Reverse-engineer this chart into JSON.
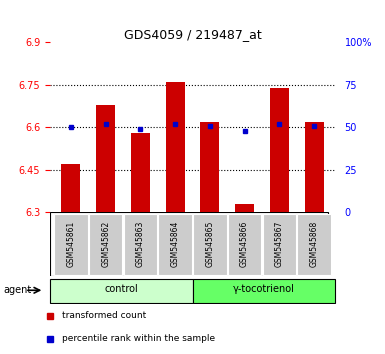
{
  "title": "GDS4059 / 219487_at",
  "samples": [
    "GSM545861",
    "GSM545862",
    "GSM545863",
    "GSM545864",
    "GSM545865",
    "GSM545866",
    "GSM545867",
    "GSM545868"
  ],
  "red_values": [
    6.47,
    6.68,
    6.58,
    6.76,
    6.62,
    6.33,
    6.74,
    6.62
  ],
  "blue_values_pct": [
    50,
    52,
    49,
    52,
    51,
    48,
    52,
    51
  ],
  "bar_bottom": 6.3,
  "ylim_left": [
    6.3,
    6.9
  ],
  "ylim_right": [
    0,
    100
  ],
  "yticks_left": [
    6.3,
    6.45,
    6.6,
    6.75,
    6.9
  ],
  "ytick_labels_left": [
    "6.3",
    "6.45",
    "6.6",
    "6.75",
    "6.9"
  ],
  "yticks_right": [
    0,
    25,
    50,
    75,
    100
  ],
  "ytick_labels_right": [
    "0",
    "25",
    "50",
    "75",
    "100%"
  ],
  "hlines": [
    6.45,
    6.6,
    6.75
  ],
  "groups": [
    {
      "label": "control",
      "indices": [
        0,
        1,
        2,
        3
      ],
      "color": "#ccffcc"
    },
    {
      "label": "γ-tocotrienol",
      "indices": [
        4,
        5,
        6,
        7
      ],
      "color": "#66ff66"
    }
  ],
  "agent_label": "agent",
  "legend_red_label": "transformed count",
  "legend_blue_label": "percentile rank within the sample",
  "red_color": "#cc0000",
  "blue_color": "#0000cc",
  "bar_width": 0.55,
  "sample_box_color": "#cccccc",
  "bar_color": "#cc0000",
  "dot_color": "#0000cc"
}
